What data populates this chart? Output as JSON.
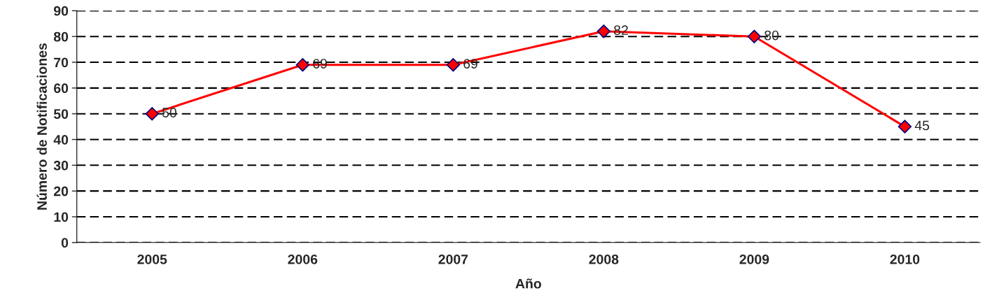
{
  "chart_data": {
    "type": "line",
    "xlabel": "Año",
    "ylabel": "Número de Notificaciones",
    "categories": [
      "2005",
      "2006",
      "2007",
      "2008",
      "2009",
      "2010"
    ],
    "series": [
      {
        "color": "#ff0000",
        "values": [
          50,
          69,
          69,
          82,
          80,
          45
        ]
      }
    ],
    "ylim": [
      0,
      90
    ],
    "yticks": [
      0,
      10,
      20,
      30,
      40,
      50,
      60,
      70,
      80,
      90
    ],
    "grid": "y",
    "marker": "diamond",
    "line_style": "solid",
    "data_labels": true
  }
}
